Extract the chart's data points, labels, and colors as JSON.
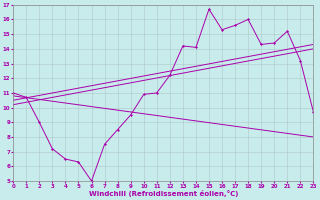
{
  "xlabel": "Windchill (Refroidissement éolien,°C)",
  "xlim": [
    0,
    23
  ],
  "ylim": [
    5,
    17
  ],
  "yticks": [
    5,
    6,
    7,
    8,
    9,
    10,
    11,
    12,
    13,
    14,
    15,
    16,
    17
  ],
  "xticks": [
    0,
    1,
    2,
    3,
    4,
    5,
    6,
    7,
    8,
    9,
    10,
    11,
    12,
    13,
    14,
    15,
    16,
    17,
    18,
    19,
    20,
    21,
    22,
    23
  ],
  "background_color": "#c8ecec",
  "grid_color": "#b0c8c8",
  "line_color": "#aa00aa",
  "line1_x": [
    0,
    1,
    2,
    3,
    4,
    5,
    6,
    7,
    8,
    9,
    10,
    11,
    12,
    13,
    14,
    15,
    16,
    17,
    18,
    19,
    20,
    21,
    22,
    23
  ],
  "line1_y": [
    11.0,
    10.7,
    9.0,
    7.2,
    6.5,
    6.3,
    5.0,
    7.5,
    8.5,
    9.5,
    10.9,
    11.0,
    12.2,
    14.2,
    14.1,
    16.7,
    15.3,
    15.6,
    16.0,
    14.3,
    14.4,
    15.2,
    13.2,
    9.7
  ],
  "trend1_x": [
    0,
    23
  ],
  "trend1_y": [
    10.5,
    14.3
  ],
  "trend2_x": [
    0,
    23
  ],
  "trend2_y": [
    10.2,
    14.0
  ],
  "trend3_x": [
    0,
    23
  ],
  "trend3_y": [
    10.8,
    8.0
  ],
  "xlabel_fontsize": 5,
  "tick_fontsize": 4
}
